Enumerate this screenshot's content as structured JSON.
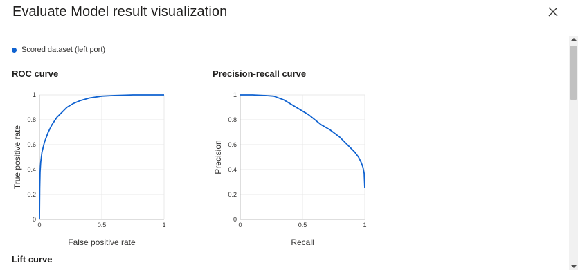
{
  "dialog": {
    "title": "Evaluate Model result visualization"
  },
  "legend": {
    "label": "Scored dataset (left port)",
    "color": "#0f62d0"
  },
  "sections": {
    "roc_title": "ROC curve",
    "pr_title": "Precision-recall curve",
    "lift_title": "Lift curve"
  },
  "chart_data": [
    {
      "type": "line",
      "xlabel": "False positive rate",
      "ylabel": "True positive rate",
      "xlim": [
        0,
        1
      ],
      "ylim": [
        0,
        1
      ],
      "x_ticks": [
        "0",
        "0.5",
        "1"
      ],
      "y_ticks": [
        "0",
        "0.2",
        "0.4",
        "0.6",
        "0.8",
        "1"
      ],
      "grid": true,
      "series": [
        {
          "name": "Scored dataset (left port)",
          "x": [
            0,
            0.002,
            0.005,
            0.01,
            0.02,
            0.04,
            0.07,
            0.1,
            0.14,
            0.18,
            0.22,
            0.27,
            0.33,
            0.4,
            0.5,
            0.6,
            0.75,
            1.0
          ],
          "y": [
            0,
            0.25,
            0.38,
            0.46,
            0.54,
            0.62,
            0.7,
            0.76,
            0.82,
            0.86,
            0.9,
            0.93,
            0.955,
            0.975,
            0.99,
            0.995,
            1.0,
            1.0
          ]
        }
      ]
    },
    {
      "type": "line",
      "xlabel": "Recall",
      "ylabel": "Precision",
      "xlim": [
        0,
        1
      ],
      "ylim": [
        0,
        1
      ],
      "x_ticks": [
        "0",
        "0.5",
        "1"
      ],
      "y_ticks": [
        "0",
        "0.2",
        "0.4",
        "0.6",
        "0.8",
        "1"
      ],
      "grid": true,
      "series": [
        {
          "name": "Scored dataset (left port)",
          "x": [
            0,
            0.1,
            0.2,
            0.27,
            0.35,
            0.45,
            0.55,
            0.65,
            0.72,
            0.8,
            0.86,
            0.92,
            0.95,
            0.97,
            0.985,
            0.995,
            1.0
          ],
          "y": [
            1.0,
            1.0,
            0.995,
            0.99,
            0.96,
            0.9,
            0.84,
            0.76,
            0.72,
            0.66,
            0.6,
            0.54,
            0.5,
            0.46,
            0.42,
            0.37,
            0.25
          ]
        }
      ]
    }
  ]
}
